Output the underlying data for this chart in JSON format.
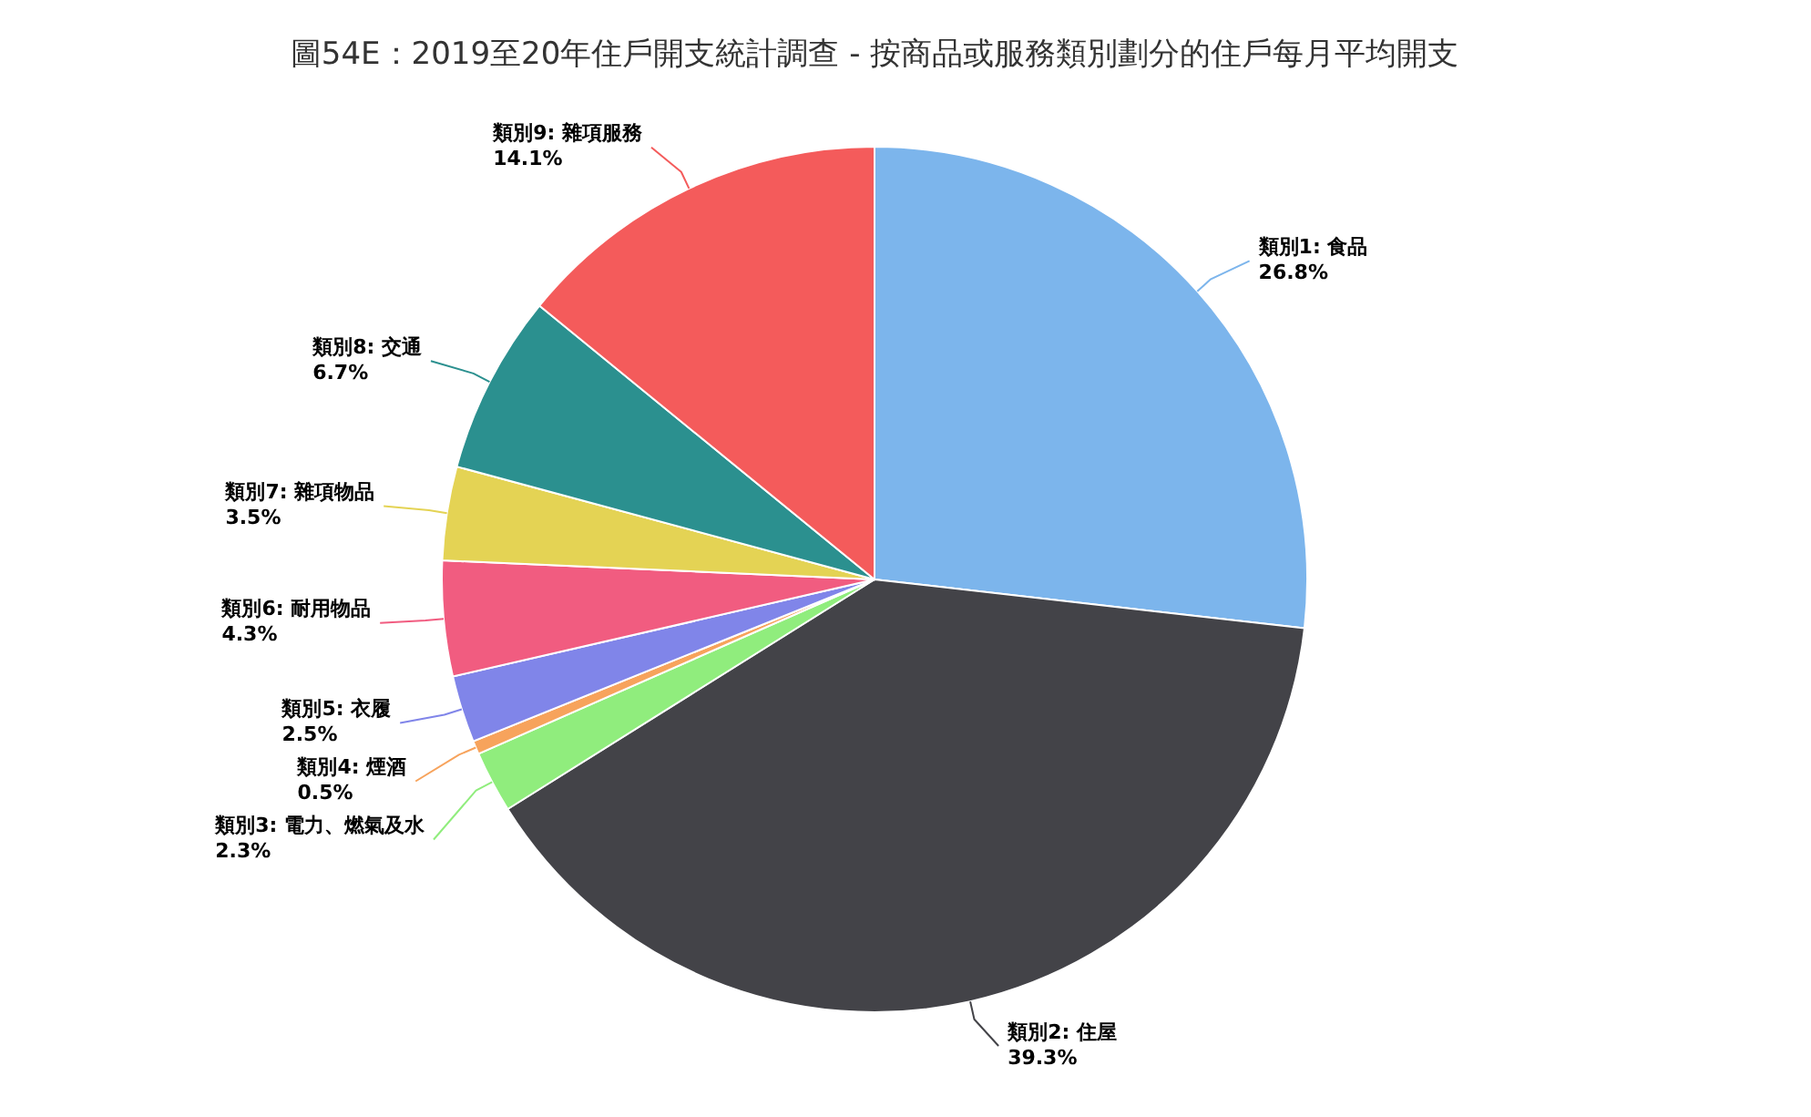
{
  "chart_data": {
    "type": "pie",
    "title": "圖54E：2019至20年住戶開支統計調查 - 按商品或服務類別劃分的住戶每月平均開支",
    "categories": [
      "類別1: 食品",
      "類別2: 住屋",
      "類別3: 電力、燃氣及水",
      "類別4: 煙酒",
      "類別5: 衣履",
      "類別6: 耐用物品",
      "類別7: 雜項物品",
      "類別8: 交通",
      "類別9: 雜項服務"
    ],
    "values": [
      26.8,
      39.3,
      2.3,
      0.5,
      2.5,
      4.3,
      3.5,
      6.7,
      14.1
    ],
    "value_labels": [
      "26.8%",
      "39.3%",
      "2.3%",
      "0.5%",
      "2.5%",
      "4.3%",
      "3.5%",
      "6.7%",
      "14.1%"
    ],
    "colors": [
      "#7cb5ec",
      "#434348",
      "#90ed7d",
      "#f7a35c",
      "#8085e9",
      "#f15c80",
      "#e4d354",
      "#2b908f",
      "#f45b5b"
    ]
  }
}
